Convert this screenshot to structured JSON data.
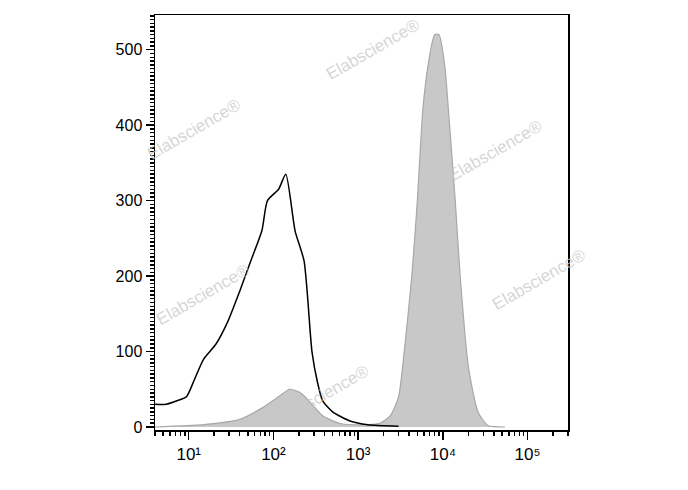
{
  "chart_data": {
    "type": "line",
    "log": "x",
    "grid": false,
    "xlim": [
      4,
      300000
    ],
    "xticks": [
      {
        "value": 10,
        "label": "10¹"
      },
      {
        "value": 100,
        "label": "10²"
      },
      {
        "value": 1000,
        "label": "10³"
      },
      {
        "value": 10000,
        "label": "10⁴"
      },
      {
        "value": 100000,
        "label": "10⁵"
      }
    ],
    "ylim": [
      -4,
      546
    ],
    "yticks": [
      0,
      100,
      200,
      300,
      400,
      500
    ],
    "series": [
      {
        "type": "area",
        "color": "#c8c8c8",
        "x": [
          4,
          15,
          40,
          73,
          115,
          155,
          210,
          285,
          380,
          600,
          1100,
          1800,
          2400,
          3000,
          3500,
          4300,
          5000,
          5800,
          6700,
          8000,
          9000,
          10500,
          12000,
          14000,
          16000,
          20000,
          26000,
          34000,
          54000
        ],
        "values": [
          0,
          3,
          10,
          25,
          40,
          50,
          45,
          30,
          15,
          5,
          3,
          5,
          15,
          40,
          100,
          200,
          300,
          420,
          480,
          520,
          520,
          480,
          400,
          300,
          200,
          80,
          20,
          2,
          0
        ]
      },
      {
        "type": "line",
        "color": "#000000",
        "x": [
          4,
          5.4,
          7.4,
          9.4,
          11.6,
          15,
          21,
          29,
          40,
          54,
          73,
          85,
          115,
          140,
          180,
          230,
          285,
          330,
          380,
          500,
          800,
          1300,
          3000
        ],
        "values": [
          30,
          30,
          35,
          40,
          62,
          90,
          110,
          140,
          180,
          220,
          260,
          300,
          315,
          335,
          260,
          220,
          100,
          60,
          35,
          20,
          8,
          3,
          1
        ]
      }
    ],
    "annotations": [
      {
        "text": "Elabscience®",
        "x": 1500,
        "y": 500
      },
      {
        "text": "Elabscience®",
        "x": 42000,
        "y": 367
      },
      {
        "text": "Elabscience®",
        "x": 11.6,
        "y": 394
      },
      {
        "text": "Elabscience®",
        "x": 15,
        "y": 175
      },
      {
        "text": "Elabscience®",
        "x": 138000,
        "y": 195
      },
      {
        "text": "Elabscience®",
        "x": 380,
        "y": 42
      }
    ]
  }
}
